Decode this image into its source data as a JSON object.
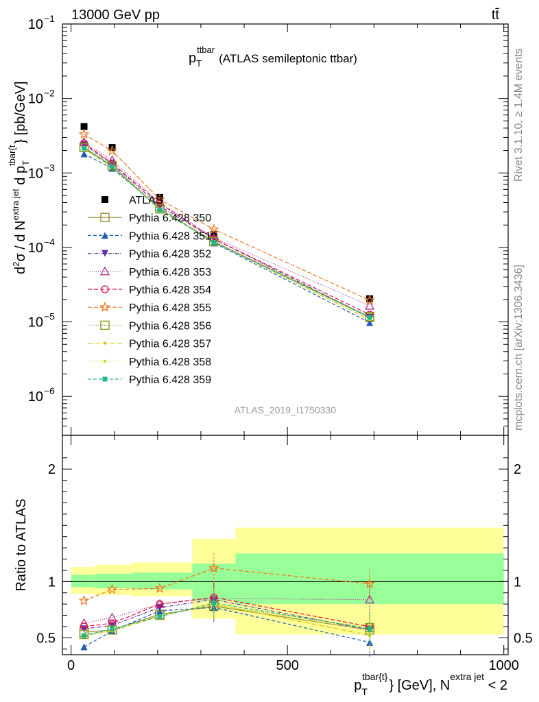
{
  "header": {
    "energy_label": "13000 GeV pp",
    "process_label": "tt̄"
  },
  "side_labels": {
    "rivet": "Rivet 3.1.10, ≥ 1.4M events",
    "mcplots": "mcplots.cern.ch [arXiv:1306.3436]"
  },
  "chart_data": [
    {
      "type": "line",
      "panel": "main",
      "title": "p_T^ttbar (ATLAS semileptonic ttbar)",
      "title_parts": {
        "p": "p",
        "sub": "T",
        "sup": "ttbar",
        "rest": "(ATLAS semileptonic ttbar)"
      },
      "watermark": "ATLAS_2019_I1750330",
      "ylabel": "d²σ / d N^{extra jet} d p_T^{tbar{t}} [pb/GeV]",
      "ylabel_parts": {
        "a": "d",
        "a_sup": "2",
        "b": "σ  /  d N",
        "b_sup": "extra jet",
        "c": " d p",
        "c_sub": "T",
        "c_sup": "tbar{t",
        "d": "} [pb/GeV]"
      },
      "yscale": "log",
      "ylim": [
        3e-07,
        0.1
      ],
      "y_tick_labels": [
        {
          "value": 0.1,
          "base": "10",
          "exp": "−1"
        },
        {
          "value": 0.01,
          "base": "10",
          "exp": "−2"
        },
        {
          "value": 0.001,
          "base": "10",
          "exp": "−3"
        },
        {
          "value": 0.0001,
          "base": "10",
          "exp": "−4"
        },
        {
          "value": 1e-05,
          "base": "10",
          "exp": "−5"
        },
        {
          "value": 1e-06,
          "base": "10",
          "exp": "−6"
        }
      ],
      "xlim": [
        -20,
        1010
      ],
      "x": [
        30,
        95,
        205,
        330,
        690
      ],
      "series": [
        {
          "name": "ATLAS",
          "color": "#000000",
          "marker": "square-filled",
          "dash": "none",
          "values": [
            0.0042,
            0.0022,
            0.00047,
            0.00015,
            2.05e-05
          ]
        },
        {
          "name": "Pythia 6.428 350",
          "color": "#9b8d3a",
          "marker": "square-open",
          "dash": "solid",
          "values": [
            0.0022,
            0.00125,
            0.00033,
            0.00012,
            1.15e-05
          ]
        },
        {
          "name": "Pythia 6.428 351",
          "color": "#1f5cb8",
          "marker": "triangle-up-filled",
          "dash": "5,3",
          "values": [
            0.0018,
            0.00115,
            0.00034,
            0.000115,
            9.8e-06
          ]
        },
        {
          "name": "Pythia 6.428 352",
          "color": "#5b2fae",
          "marker": "triangle-down-filled",
          "dash": "5,2,1,2",
          "values": [
            0.0024,
            0.00132,
            0.00036,
            0.00013,
            1.15e-05
          ]
        },
        {
          "name": "Pythia 6.428 353",
          "color": "#b0308f",
          "marker": "triangle-up-open",
          "dash": "1,2",
          "values": [
            0.0026,
            0.00148,
            0.0004,
            0.000135,
            1.65e-05
          ]
        },
        {
          "name": "Pythia 6.428 354",
          "color": "#e0103a",
          "marker": "circle-open",
          "dash": "6,3",
          "values": [
            0.0025,
            0.00135,
            0.00039,
            0.00013,
            1.25e-05
          ]
        },
        {
          "name": "Pythia 6.428 355",
          "color": "#f07820",
          "marker": "star-open",
          "dash": "6,3",
          "values": [
            0.0033,
            0.00198,
            0.00044,
            0.000175,
            1.95e-05
          ]
        },
        {
          "name": "Pythia 6.428 356",
          "color": "#7f9a1a",
          "marker": "square-open",
          "dash": "1,2",
          "values": [
            0.0022,
            0.00124,
            0.00033,
            0.00012,
            1.18e-05
          ]
        },
        {
          "name": "Pythia 6.428 357",
          "color": "#e0c21a",
          "marker": "dot",
          "dash": "6,2,1,2",
          "values": [
            0.0021,
            0.0012,
            0.00033,
            0.000118,
            1.07e-05
          ]
        },
        {
          "name": "Pythia 6.428 358",
          "color": "#c8d820",
          "marker": "dot",
          "dash": "1,2",
          "values": [
            0.0021,
            0.00122,
            0.00033,
            0.000118,
            1.1e-05
          ]
        },
        {
          "name": "Pythia 6.428 359",
          "color": "#20b88a",
          "marker": "square-filled-small",
          "dash": "5,3",
          "values": [
            0.00215,
            0.00122,
            0.00032,
            0.000117,
            1.15e-05
          ]
        }
      ]
    },
    {
      "type": "line",
      "panel": "ratio",
      "ylabel": "Ratio to ATLAS",
      "ylim": [
        0.35,
        2.3
      ],
      "y_tick_labels": [
        "0.5",
        "1",
        "2"
      ],
      "y_tick_values": [
        0.5,
        1,
        2
      ],
      "xlabel": "p_T^{tbar{t}} [GeV], N^{extra jet} < 2",
      "xlabel_parts": {
        "a": "p",
        "a_sub": "T",
        "a_sup": "tbar{t}",
        "b": "} [GeV], N",
        "b_sup": "extra jet",
        "c": " < 2"
      },
      "xlim": [
        -20,
        1010
      ],
      "x_tick_labels": [
        "0",
        "500",
        "1000"
      ],
      "x_tick_values": [
        0,
        500,
        1000
      ],
      "bins": [
        {
          "x0": 0,
          "x1": 55,
          "stat_lo": 0.95,
          "stat_hi": 1.06,
          "tot_lo": 0.89,
          "tot_hi": 1.13
        },
        {
          "x0": 55,
          "x1": 140,
          "stat_lo": 0.94,
          "stat_hi": 1.07,
          "tot_lo": 0.88,
          "tot_hi": 1.15
        },
        {
          "x0": 140,
          "x1": 280,
          "stat_lo": 0.93,
          "stat_hi": 1.08,
          "tot_lo": 0.87,
          "tot_hi": 1.17
        },
        {
          "x0": 280,
          "x1": 380,
          "stat_lo": 0.83,
          "stat_hi": 1.16,
          "tot_lo": 0.67,
          "tot_hi": 1.38
        },
        {
          "x0": 380,
          "x1": 1000,
          "stat_lo": 0.8,
          "stat_hi": 1.25,
          "tot_lo": 0.53,
          "tot_hi": 1.48
        }
      ],
      "x": [
        30,
        95,
        205,
        330,
        690
      ],
      "series_ratios": [
        [
          0.55,
          0.57,
          0.71,
          0.78,
          0.57
        ],
        [
          0.42,
          0.56,
          0.74,
          0.77,
          0.46
        ],
        [
          0.58,
          0.61,
          0.77,
          0.84,
          0.57
        ],
        [
          0.63,
          0.68,
          0.8,
          0.85,
          0.84
        ],
        [
          0.6,
          0.63,
          0.8,
          0.86,
          0.6
        ],
        [
          0.83,
          0.93,
          0.94,
          1.12,
          0.98
        ],
        [
          0.53,
          0.57,
          0.7,
          0.79,
          0.59
        ],
        [
          0.52,
          0.56,
          0.69,
          0.8,
          0.52
        ],
        [
          0.52,
          0.57,
          0.7,
          0.8,
          0.53
        ],
        [
          0.52,
          0.58,
          0.69,
          0.81,
          0.58
        ]
      ]
    }
  ]
}
